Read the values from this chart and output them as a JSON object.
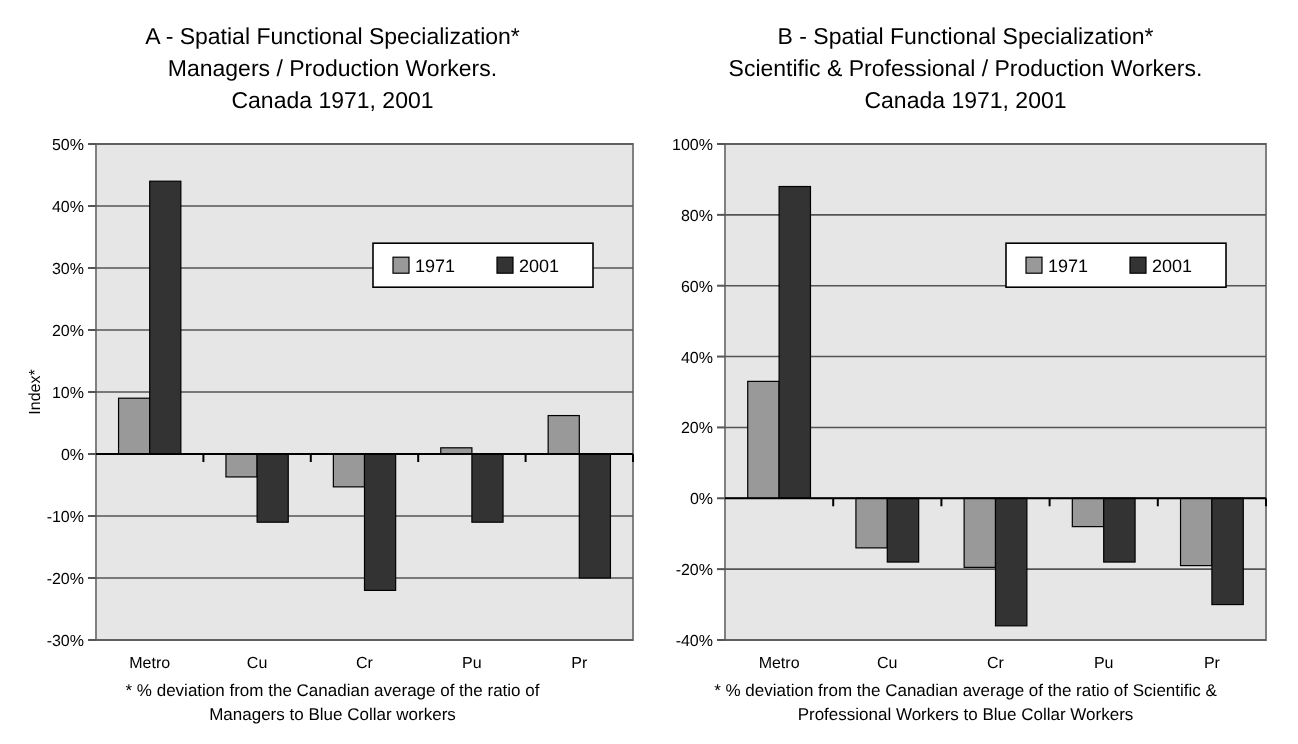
{
  "chart_data": [
    {
      "type": "bar",
      "title": "A - Spatial Functional Specialization*\nManagers / Production Workers.\nCanada 1971, 2001",
      "ylabel": "Index*",
      "categories": [
        "Metro",
        "Cu",
        "Cr",
        "Pu",
        "Pr"
      ],
      "series": [
        {
          "name": "1971",
          "color": "#999999",
          "values": [
            9,
            -3.7,
            -5.3,
            1,
            6.2
          ]
        },
        {
          "name": "2001",
          "color": "#333333",
          "values": [
            44,
            -11,
            -22,
            -11,
            -20
          ]
        }
      ],
      "ylim": [
        -30,
        50
      ],
      "yticks": [
        {
          "value": -30,
          "label": "-30%"
        },
        {
          "value": -20,
          "label": "-20%"
        },
        {
          "value": -10,
          "label": "-10%"
        },
        {
          "value": 0,
          "label": "0%"
        },
        {
          "value": 10,
          "label": "10%"
        },
        {
          "value": 20,
          "label": "20%"
        },
        {
          "value": 30,
          "label": "30%"
        },
        {
          "value": 40,
          "label": "40%"
        },
        {
          "value": 50,
          "label": "50%"
        }
      ],
      "grid": "y",
      "legend": "top right",
      "annotations": [
        "*   % deviation from the Canadian average of the ratio of\nManagers to Blue Collar workers"
      ]
    },
    {
      "type": "bar",
      "title": "B - Spatial Functional Specialization*\nScientific & Professional / Production Workers.\nCanada 1971, 2001",
      "categories": [
        "Metro",
        "Cu",
        "Cr",
        "Pu",
        "Pr"
      ],
      "series": [
        {
          "name": "1971",
          "color": "#999999",
          "values": [
            33,
            -14,
            -19.5,
            -8,
            -19
          ]
        },
        {
          "name": "2001",
          "color": "#333333",
          "values": [
            88,
            -18,
            -36,
            -18,
            -30
          ]
        }
      ],
      "ylim": [
        -40,
        100
      ],
      "yticks": [
        {
          "value": -40,
          "label": "-40%"
        },
        {
          "value": -20,
          "label": "-20%"
        },
        {
          "value": 0,
          "label": "0%"
        },
        {
          "value": 20,
          "label": "20%"
        },
        {
          "value": 40,
          "label": "40%"
        },
        {
          "value": 60,
          "label": "60%"
        },
        {
          "value": 80,
          "label": "80%"
        },
        {
          "value": 100,
          "label": "100%"
        }
      ],
      "grid": "y",
      "legend": "top right",
      "annotations": [
        "*   % deviation from the Canadian average of the ratio of Scientific &\nProfessional Workers  to Blue Collar Workers"
      ]
    }
  ]
}
